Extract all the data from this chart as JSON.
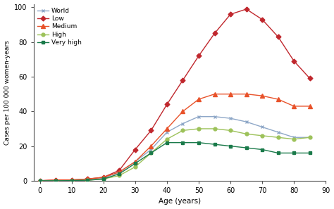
{
  "age": [
    0,
    5,
    10,
    15,
    20,
    25,
    30,
    35,
    40,
    45,
    50,
    55,
    60,
    65,
    70,
    75,
    80,
    85
  ],
  "world": [
    0,
    0,
    0.1,
    0.2,
    1.5,
    5,
    11,
    18,
    28,
    33,
    37,
    37,
    36,
    34,
    31,
    28,
    25,
    25
  ],
  "low": [
    0,
    0.5,
    0.5,
    1,
    2,
    6,
    18,
    29,
    44,
    58,
    72,
    85,
    96,
    99,
    93,
    83,
    69,
    59
  ],
  "medium": [
    0,
    0.5,
    0.5,
    1,
    2,
    5,
    11,
    20,
    30,
    40,
    47,
    50,
    50,
    50,
    49,
    47,
    43,
    43
  ],
  "high": [
    0,
    0,
    0.1,
    0.3,
    1,
    3,
    8,
    16,
    24,
    29,
    30,
    30,
    29,
    27,
    26,
    25,
    24,
    25
  ],
  "veryhigh": [
    0,
    0,
    0.1,
    0.3,
    1,
    4,
    10,
    16,
    22,
    22,
    22,
    21,
    20,
    19,
    18,
    16,
    16,
    16
  ],
  "world_color": "#8fa8c8",
  "low_color": "#c0272d",
  "medium_color": "#e8522a",
  "high_color": "#9dc25a",
  "veryhigh_color": "#1a7a4a",
  "ylabel": "Cases per 100 000 women-years",
  "xlabel": "Age (years)",
  "yticks": [
    0,
    20,
    40,
    60,
    80,
    100
  ],
  "xticks": [
    0,
    10,
    20,
    30,
    40,
    50,
    60,
    70,
    80,
    90
  ],
  "xlim": [
    -2,
    90
  ],
  "ylim": [
    0,
    102
  ],
  "legend_labels": [
    "World",
    "Low",
    "Medium",
    "High",
    "Very high"
  ],
  "background_color": "#ffffff"
}
